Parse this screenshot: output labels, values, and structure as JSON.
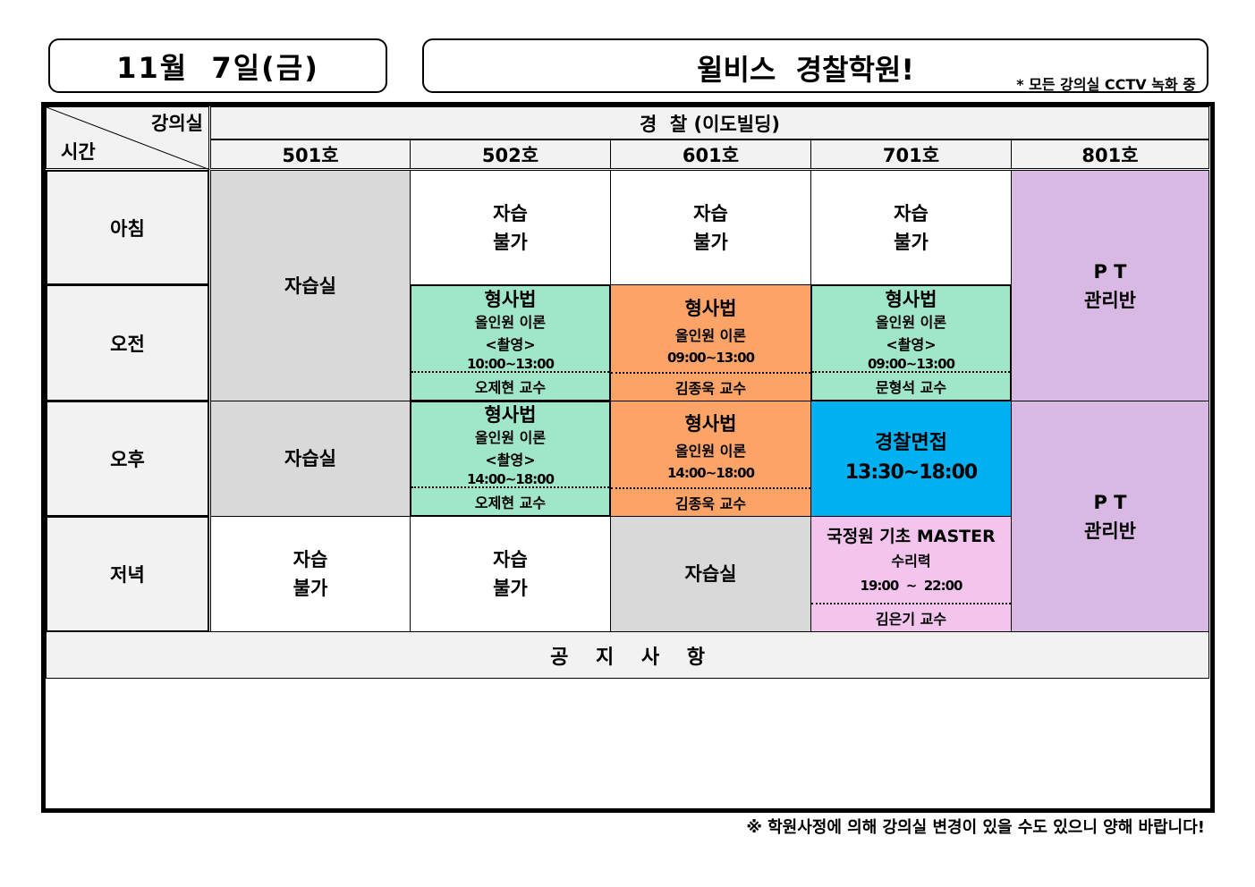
{
  "date": "11월  7일(금)",
  "title": "윌비스  경찰학원!",
  "cctv_note": "* 모든 강의실 CCTV 녹화 중",
  "header": {
    "room_label": "강의실",
    "time_label": "시간",
    "building": "경  찰 (이도빌딩)",
    "rooms": [
      "501호",
      "502호",
      "601호",
      "701호",
      "801호"
    ]
  },
  "periods": [
    "아침",
    "오전",
    "오후",
    "저녁"
  ],
  "cells": {
    "r501_am": "자습실",
    "r501_pm": "자습실",
    "r501_eve": [
      "자습",
      "불가"
    ],
    "r502_morning": [
      "자습",
      "불가"
    ],
    "r502_am": {
      "subject": "형사법",
      "course": "올인원 이론",
      "tag": "<촬영>",
      "time": "10:00~13:00",
      "prof": "오제현 교수"
    },
    "r502_pm": {
      "subject": "형사법",
      "course": "올인원 이론",
      "tag": "<촬영>",
      "time": "14:00~18:00",
      "prof": "오제현 교수"
    },
    "r502_eve": [
      "자습",
      "불가"
    ],
    "r601_morning": [
      "자습",
      "불가"
    ],
    "r601_am": {
      "subject": "형사법",
      "course": "올인원 이론",
      "time": "09:00~13:00",
      "prof": "김종욱 교수"
    },
    "r601_pm": {
      "subject": "형사법",
      "course": "올인원 이론",
      "time": "14:00~18:00",
      "prof": "김종욱 교수"
    },
    "r601_eve": "자습실",
    "r701_morning": [
      "자습",
      "불가"
    ],
    "r701_am": {
      "subject": "형사법",
      "course": "올인원 이론",
      "tag": "<촬영>",
      "time": "09:00~13:00",
      "prof": "문형석 교수"
    },
    "r701_pm": {
      "subject": "경찰면접",
      "time": "13:30~18:00"
    },
    "r701_eve": {
      "subject": "국정원 기초 MASTER",
      "course": "수리력",
      "time": "19:00  ~  22:00",
      "prof": "김은기 교수"
    },
    "r801_top": [
      "P T",
      "관리반"
    ],
    "r801_bottom": [
      "P T",
      "관리반"
    ]
  },
  "notice_title": "공    지    사    항",
  "notice_body": "",
  "footer": "※ 학원사정에 의해 강의실 변경이 있을 수도 있으니 양해 바랍니다!",
  "colors": {
    "gray": "#d9d9d9",
    "green": "#a0e6c8",
    "orange": "#fca468",
    "blue": "#00b0f0",
    "pink": "#f2c4ee",
    "purple": "#d9b8e4"
  }
}
